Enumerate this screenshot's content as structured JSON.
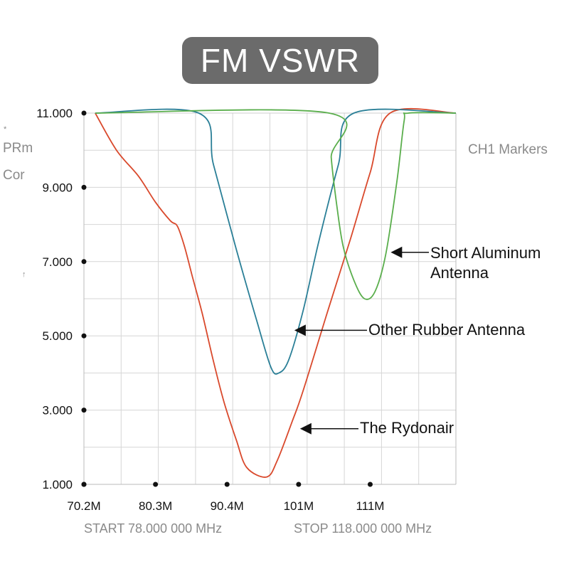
{
  "chart_data": {
    "type": "line",
    "title": "FM VSWR",
    "x_tick_labels": [
      "70.2M",
      "80.3M",
      "90.4M",
      "101M",
      "111M"
    ],
    "x_tick_values": [
      70.2,
      80.3,
      90.4,
      100.5,
      110.6
    ],
    "xlim": [
      70.2,
      122.7
    ],
    "y_tick_labels": [
      "11.000",
      "9.000",
      "7.000",
      "5.000",
      "3.000",
      "1.000"
    ],
    "y_tick_values": [
      11,
      9,
      7,
      5,
      3,
      1
    ],
    "ylim": [
      1,
      11
    ],
    "grid": true,
    "series": [
      {
        "name": "The Rydonair",
        "color": "#d9492c",
        "points": [
          [
            71.8,
            11.0
          ],
          [
            74.8,
            10.0
          ],
          [
            77.9,
            9.3
          ],
          [
            80.3,
            8.6
          ],
          [
            82.4,
            8.1
          ],
          [
            83.4,
            7.95
          ],
          [
            84.4,
            7.4
          ],
          [
            85.5,
            6.6
          ],
          [
            86.9,
            5.6
          ],
          [
            88.5,
            4.3
          ],
          [
            90.0,
            3.2
          ],
          [
            91.7,
            2.2
          ],
          [
            93.2,
            1.45
          ],
          [
            96.0,
            1.2
          ],
          [
            97.5,
            1.65
          ],
          [
            99.6,
            2.7
          ],
          [
            101.1,
            3.5
          ],
          [
            104.5,
            5.6
          ],
          [
            107.8,
            7.6
          ],
          [
            110.6,
            9.4
          ],
          [
            113.4,
            11.0
          ],
          [
            122.7,
            11.0
          ]
        ]
      },
      {
        "name": "Other Rubber Antenna",
        "color": "#2a7f97",
        "points": [
          [
            71.8,
            11.0
          ],
          [
            86.4,
            11.0
          ],
          [
            88.5,
            9.6
          ],
          [
            91.6,
            7.4
          ],
          [
            94.6,
            5.4
          ],
          [
            96.6,
            4.15
          ],
          [
            97.7,
            4.0
          ],
          [
            99.1,
            4.35
          ],
          [
            101.1,
            5.65
          ],
          [
            103.3,
            7.5
          ],
          [
            106.1,
            9.6
          ],
          [
            108.3,
            11.0
          ],
          [
            122.7,
            11.0
          ]
        ]
      },
      {
        "name": "Short Aluminum Antenna",
        "color": "#5aae4c",
        "points": [
          [
            71.8,
            11.0
          ],
          [
            104.8,
            11.0
          ],
          [
            105.1,
            9.8
          ],
          [
            105.9,
            8.5
          ],
          [
            106.8,
            7.4
          ],
          [
            108.3,
            6.5
          ],
          [
            109.8,
            6.0
          ],
          [
            111.3,
            6.2
          ],
          [
            112.8,
            7.2
          ],
          [
            114.4,
            9.2
          ],
          [
            115.4,
            10.8
          ],
          [
            116.0,
            11.0
          ],
          [
            122.7,
            11.0
          ]
        ]
      }
    ],
    "annotations": [
      {
        "lines": [
          "Short Aluminum",
          "Antenna"
        ],
        "x": 113.5,
        "y": 7.25
      },
      {
        "lines": [
          "Other Rubber Antenna"
        ],
        "x": 99.9,
        "y": 5.15
      },
      {
        "lines": [
          "The Rydonair"
        ],
        "x": 100.7,
        "y": 2.5
      }
    ]
  },
  "side_labels": {
    "star": "*",
    "prm": "PRm",
    "cor": "Cor",
    "arrow_mark": "↑",
    "markers": "CH1 Markers"
  },
  "footer": {
    "start": "START 78.000 000 MHz",
    "stop": "STOP 118.000 000 MHz"
  }
}
